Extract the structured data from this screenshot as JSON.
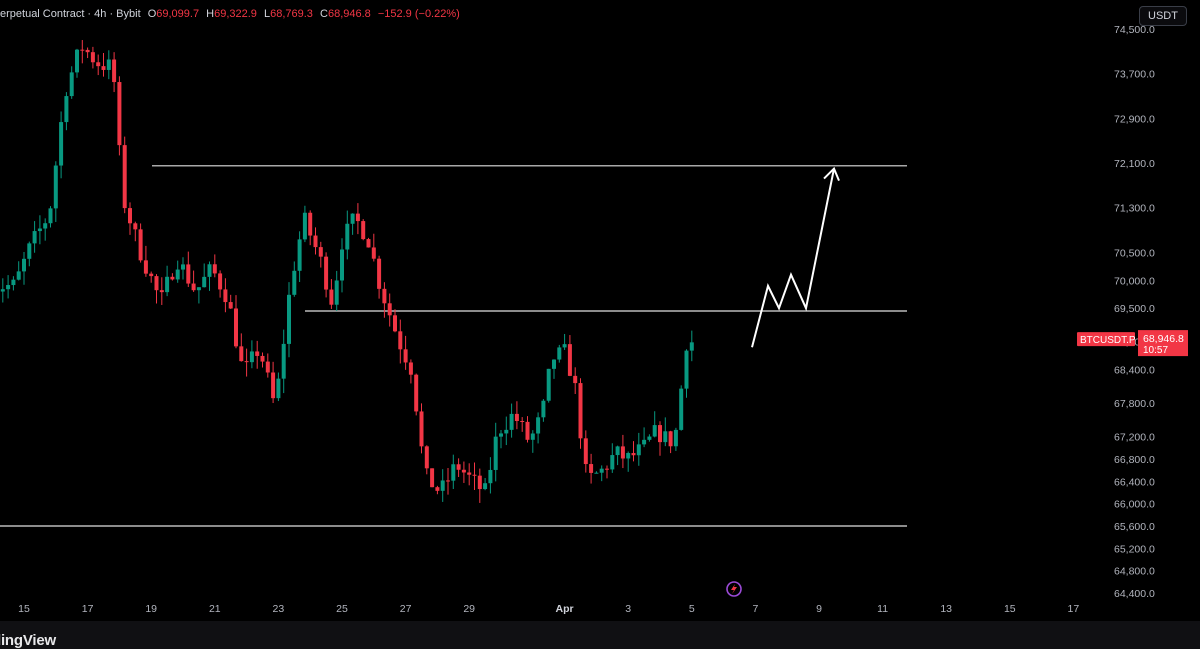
{
  "legend": {
    "symbol": "erpetual Contract · 4h · Bybit",
    "open_label": "O",
    "open": "69,099.7",
    "high_label": "H",
    "high": "69,322.9",
    "low_label": "L",
    "low": "68,769.3",
    "close_label": "C",
    "close": "68,946.8",
    "change": "−152.9 (−0.22%)"
  },
  "currency_button": "USDT",
  "price_tag": {
    "symbol": "BTCUSDT.P",
    "price": "68,946.8",
    "countdown": "10:57"
  },
  "brand": "dingView",
  "colors": {
    "up": "#089981",
    "down": "#f23645",
    "background": "#000000",
    "lines": "#e0e0e0",
    "arrow": "#ffffff"
  },
  "chart_data": {
    "type": "candlestick",
    "timeframe": "4h",
    "y_axis": {
      "ticks": [
        74500,
        73700,
        72900,
        72100,
        71300,
        70500,
        70000,
        69500,
        68900,
        68400,
        67800,
        67200,
        66800,
        66400,
        66000,
        65600,
        65200,
        64800,
        64400
      ],
      "tick_labels": [
        "74,500.0",
        "73,700.0",
        "72,900.0",
        "72,100.0",
        "71,300.0",
        "70,500.0",
        "70,000.0",
        "69,500.0",
        "68,900.0",
        "68,400.0",
        "67,800.0",
        "67,200.0",
        "66,800.0",
        "66,400.0",
        "66,000.0",
        "65,600.0",
        "65,200.0",
        "64,800.0",
        "64,400.0"
      ]
    },
    "x_axis": {
      "ticks": [
        {
          "label": "15",
          "bold": false
        },
        {
          "label": "17",
          "bold": false
        },
        {
          "label": "19",
          "bold": false
        },
        {
          "label": "21",
          "bold": false
        },
        {
          "label": "23",
          "bold": false
        },
        {
          "label": "25",
          "bold": false
        },
        {
          "label": "27",
          "bold": false
        },
        {
          "label": "29",
          "bold": false
        },
        {
          "label": "Apr",
          "bold": true
        },
        {
          "label": "3",
          "bold": false
        },
        {
          "label": "5",
          "bold": false
        },
        {
          "label": "7",
          "bold": false
        },
        {
          "label": "9",
          "bold": false
        },
        {
          "label": "11",
          "bold": false
        },
        {
          "label": "13",
          "bold": false
        },
        {
          "label": "15",
          "bold": false
        },
        {
          "label": "17",
          "bold": false
        }
      ]
    },
    "horizontal_levels": [
      72050,
      69450,
      65600
    ],
    "projection_path_prices": [
      68800,
      69900,
      69500,
      70100,
      69500,
      72000
    ],
    "price_anchors": [
      {
        "day": 14.7,
        "price": 69900
      },
      {
        "day": 15.2,
        "price": 70600
      },
      {
        "day": 15.8,
        "price": 71200
      },
      {
        "day": 16.3,
        "price": 73400
      },
      {
        "day": 16.8,
        "price": 74200
      },
      {
        "day": 17.3,
        "price": 73900
      },
      {
        "day": 17.8,
        "price": 73800
      },
      {
        "day": 18.1,
        "price": 71500
      },
      {
        "day": 18.6,
        "price": 70600
      },
      {
        "day": 19.3,
        "price": 69600
      },
      {
        "day": 19.8,
        "price": 70400
      },
      {
        "day": 20.4,
        "price": 69800
      },
      {
        "day": 20.9,
        "price": 70200
      },
      {
        "day": 21.4,
        "price": 69700
      },
      {
        "day": 21.9,
        "price": 68300
      },
      {
        "day": 22.4,
        "price": 68800
      },
      {
        "day": 22.9,
        "price": 67700
      },
      {
        "day": 23.4,
        "price": 70000
      },
      {
        "day": 23.8,
        "price": 71100
      },
      {
        "day": 24.3,
        "price": 70400
      },
      {
        "day": 24.7,
        "price": 69600
      },
      {
        "day": 25.0,
        "price": 70700
      },
      {
        "day": 25.4,
        "price": 71100
      },
      {
        "day": 25.8,
        "price": 70800
      },
      {
        "day": 26.2,
        "price": 69900
      },
      {
        "day": 26.8,
        "price": 68900
      },
      {
        "day": 27.2,
        "price": 68400
      },
      {
        "day": 27.6,
        "price": 66500
      },
      {
        "day": 28.1,
        "price": 66200
      },
      {
        "day": 28.6,
        "price": 66700
      },
      {
        "day": 29.1,
        "price": 66400
      },
      {
        "day": 29.5,
        "price": 66200
      },
      {
        "day": 29.9,
        "price": 67300
      },
      {
        "day": 30.4,
        "price": 67600
      },
      {
        "day": 30.9,
        "price": 67100
      },
      {
        "day": 31.3,
        "price": 67600
      },
      {
        "day": 31.6,
        "price": 68600
      },
      {
        "day": 32.0,
        "price": 68700
      },
      {
        "day": 32.3,
        "price": 68200
      },
      {
        "day": 32.7,
        "price": 66400
      },
      {
        "day": 33.2,
        "price": 66600
      },
      {
        "day": 33.6,
        "price": 66900
      },
      {
        "day": 34.0,
        "price": 66800
      },
      {
        "day": 34.5,
        "price": 67000
      },
      {
        "day": 34.9,
        "price": 67300
      },
      {
        "day": 35.3,
        "price": 67100
      },
      {
        "day": 35.6,
        "price": 67400
      },
      {
        "day": 35.75,
        "price": 68900
      },
      {
        "day": 36.1,
        "price": 68900
      }
    ]
  }
}
